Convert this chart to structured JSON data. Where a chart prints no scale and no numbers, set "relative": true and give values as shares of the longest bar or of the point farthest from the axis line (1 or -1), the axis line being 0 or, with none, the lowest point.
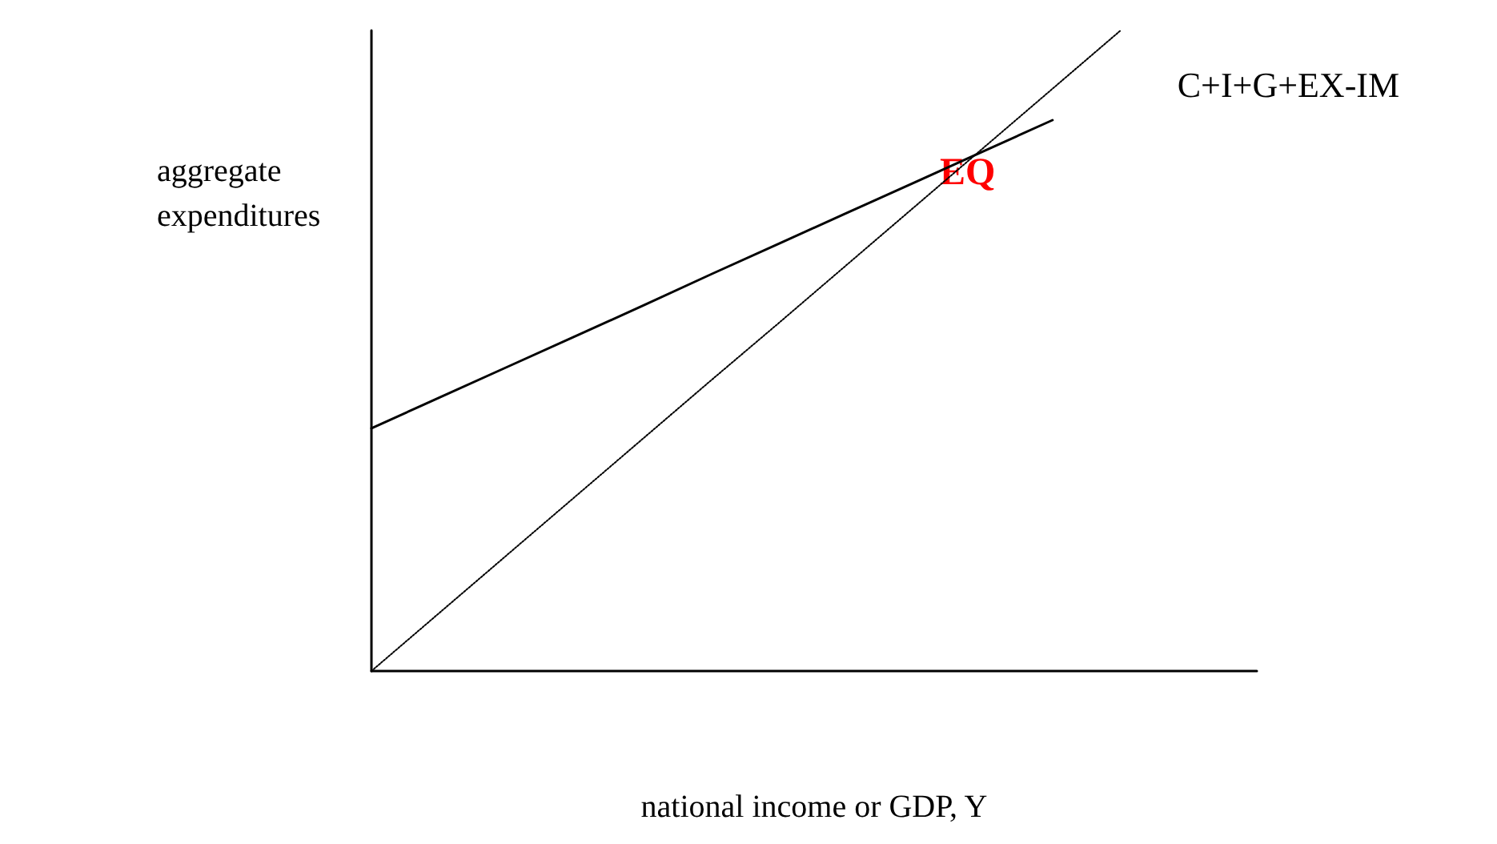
{
  "chart_data": {
    "type": "line",
    "relative": true,
    "xlabel": "national income or GDP, Y",
    "ylabel": "aggregate expenditures",
    "annotations": [
      "EQ"
    ],
    "categories": [
      null,
      null,
      null,
      null,
      null,
      null,
      null,
      null,
      null,
      null,
      null,
      null,
      null,
      null
    ],
    "marker": "none",
    "grid": false,
    "legend": false,
    "series": [
      {
        "name": "C+I+G+EX-IM",
        "color": "#000000",
        "line_style": "solid",
        "values": [
          0.379,
          0.427,
          0.475,
          0.523,
          0.571,
          0.62,
          0.668,
          0.716,
          0.764,
          0.812,
          0.86,
          null,
          null,
          null
        ]
      },
      {
        "color": "#000000",
        "line_style": "dotted",
        "values": [
          0,
          0.091,
          0.182,
          0.273,
          0.364,
          0.455,
          0.545,
          0.636,
          0.727,
          0.818,
          0.909,
          1,
          null,
          null
        ]
      }
    ]
  }
}
